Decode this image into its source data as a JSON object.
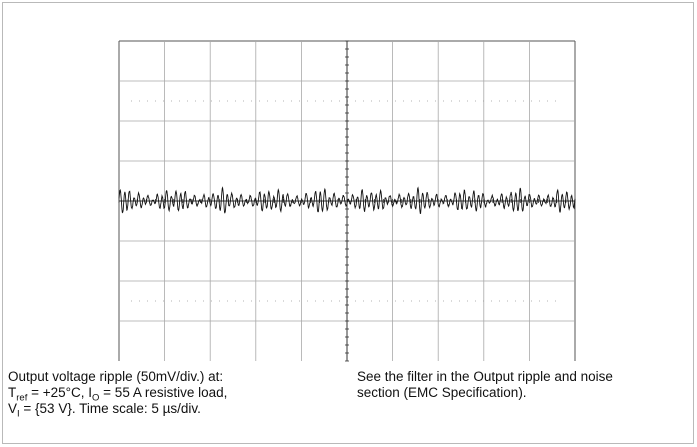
{
  "chart_data": {
    "type": "line",
    "title": "",
    "xlabel": "",
    "ylabel": "",
    "divisions": {
      "x": 10,
      "y": 8
    },
    "grid": true,
    "x_unit": "µs",
    "y_unit": "mV",
    "x_per_div": 5,
    "y_per_div": 50,
    "xlim": [
      0,
      50
    ],
    "ylim": [
      -200,
      200
    ],
    "series": [
      {
        "waveform": "ripple",
        "cycles": 98,
        "amplitude_mv": [
          4,
          14
        ],
        "offset_mv": 0
      }
    ]
  },
  "caption": {
    "left": {
      "line1": "Output voltage ripple (50mV/div.) at:",
      "t_sym": "T",
      "t_sub": "ref",
      "t_val": " = +25°C, I",
      "i_sub": "O",
      "i_val": " = 55 A resistive load,",
      "v_sym": "V",
      "v_sub": "I",
      "v_val": " = {53 V}. Time scale: 5 µs/div."
    },
    "right": {
      "line1": "See the filter in the Output ripple and noise",
      "line2": "section (EMC Specification)."
    }
  }
}
